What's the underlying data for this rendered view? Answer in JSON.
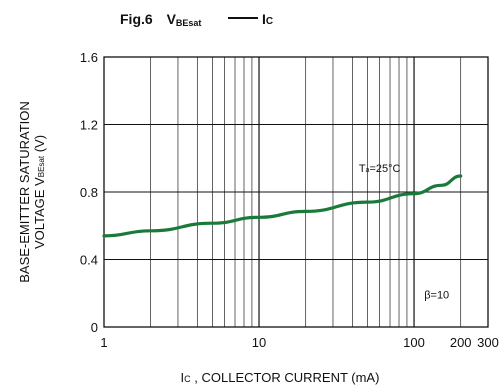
{
  "figure": {
    "number": "Fig.6",
    "y_symbol": "V",
    "y_symbol_sub": "BEsat",
    "x_symbol": "I",
    "x_symbol_sub": "C"
  },
  "chart_data": {
    "type": "line",
    "x_scale": "log",
    "xlim": [
      1,
      300
    ],
    "ylim": [
      0,
      1.6
    ],
    "x_ticks": [
      {
        "value": 1,
        "label": "1"
      },
      {
        "value": 10,
        "label": "10"
      },
      {
        "value": 100,
        "label": "100"
      },
      {
        "value": 200,
        "label": "200"
      },
      {
        "value": 300,
        "label": "300"
      }
    ],
    "y_ticks": [
      {
        "value": 0,
        "label": "0"
      },
      {
        "value": 0.4,
        "label": "0.4"
      },
      {
        "value": 0.8,
        "label": "0.8"
      },
      {
        "value": 1.2,
        "label": "1.2"
      },
      {
        "value": 1.6,
        "label": "1.6"
      }
    ],
    "xlabel_prefix": "I",
    "xlabel_sub": "C",
    "xlabel_rest": " , COLLECTOR CURRENT (mA)",
    "ylabel_line1": "BASE-EMITTER SATURATION",
    "ylabel_line2_prefix": "VOLTAGE V",
    "ylabel_line2_sub": "BEsat",
    "ylabel_line2_suffix": " (V)",
    "grid": true,
    "series": [
      {
        "color": "#1a7a3a",
        "points": [
          {
            "x": 1,
            "y": 0.54
          },
          {
            "x": 2,
            "y": 0.57
          },
          {
            "x": 5,
            "y": 0.615
          },
          {
            "x": 10,
            "y": 0.65
          },
          {
            "x": 20,
            "y": 0.685
          },
          {
            "x": 50,
            "y": 0.74
          },
          {
            "x": 100,
            "y": 0.79
          },
          {
            "x": 150,
            "y": 0.84
          },
          {
            "x": 200,
            "y": 0.895
          }
        ]
      }
    ],
    "annotations": [
      {
        "prefix": "T",
        "sub": "a",
        "suffix": "=25°C",
        "x": 60,
        "y": 0.92
      },
      {
        "prefix": "β=10",
        "sub": "",
        "suffix": "",
        "x": 140,
        "y": 0.17
      }
    ]
  }
}
